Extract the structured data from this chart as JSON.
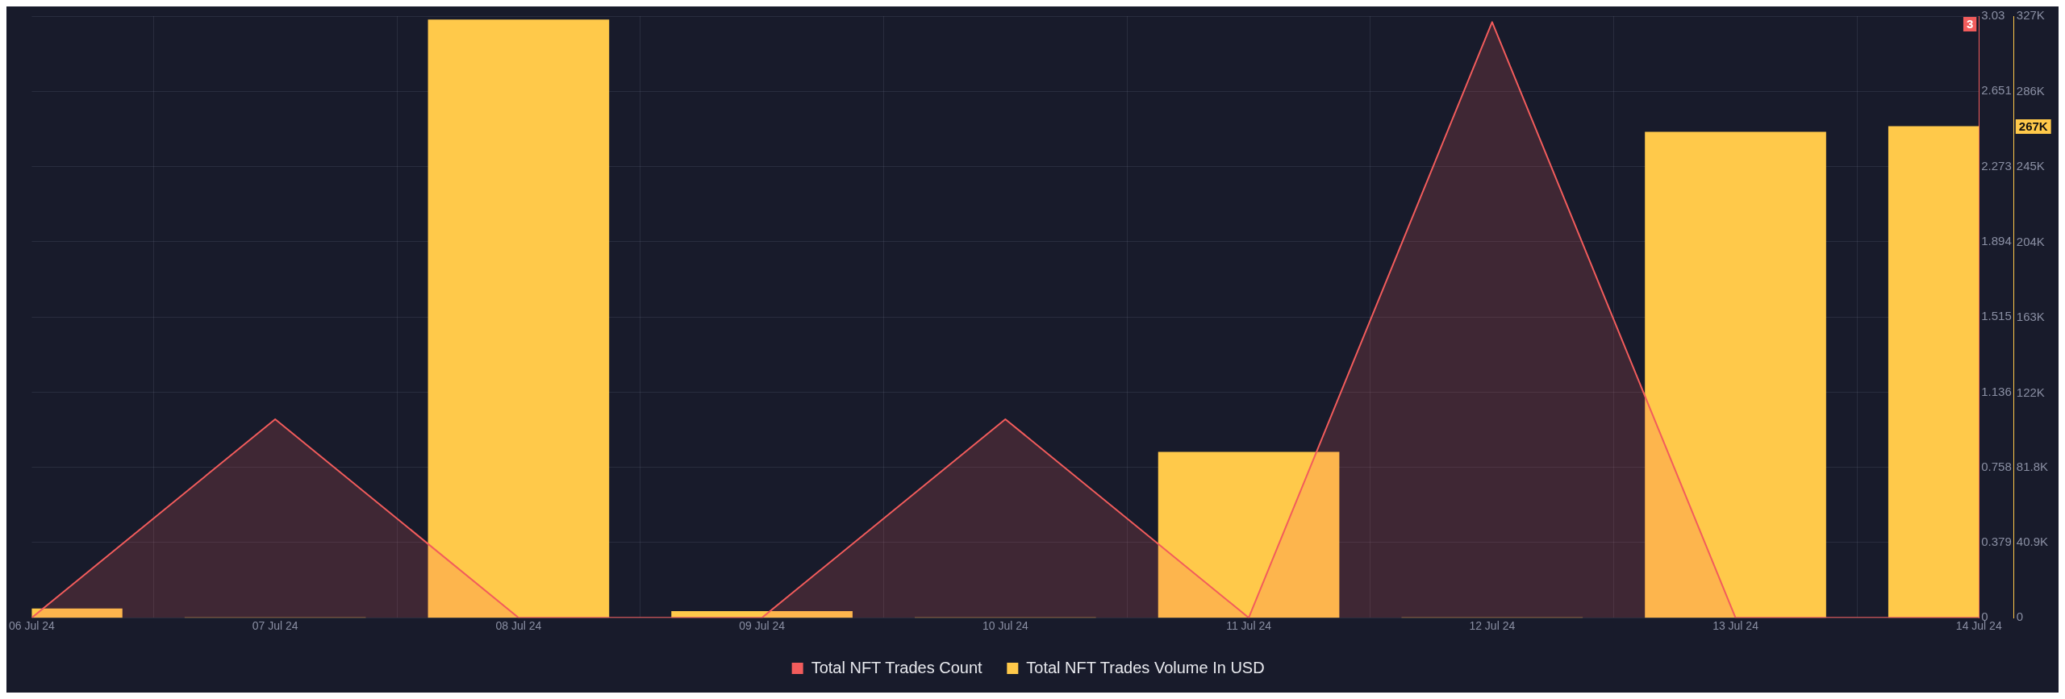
{
  "chart_data": {
    "type": "bar",
    "x": [
      "--07-06",
      "--07-07",
      "--07-08",
      "--07-09",
      "--07-10",
      "--07-11",
      "--07-12",
      "--07-13",
      "--07-14"
    ],
    "xlim": [
      "--07-06",
      "--07-14"
    ],
    "xticks": [
      {
        "value": "--07-06",
        "label": "06 Jul 24"
      },
      {
        "value": "--07-07",
        "label": "07 Jul 24"
      },
      {
        "value": "--07-08",
        "label": "08 Jul 24"
      },
      {
        "value": "--07-09",
        "label": "09 Jul 24"
      },
      {
        "value": "--07-10",
        "label": "10 Jul 24"
      },
      {
        "value": "--07-11",
        "label": "11 Jul 24"
      },
      {
        "value": "--07-12",
        "label": "12 Jul 24"
      },
      {
        "value": "--07-13",
        "label": "13 Jul 24"
      },
      {
        "value": "--07-14",
        "label": "14 Jul 24"
      }
    ],
    "series": [
      {
        "name": "Total NFT Trades Count",
        "type": "area",
        "color": "#f25c5c",
        "values": [
          0,
          1,
          0,
          0,
          1,
          0,
          3,
          0,
          0
        ]
      },
      {
        "name": "Total NFT Trades Volume In USD",
        "axis": "y2",
        "color": "#ffc94a",
        "values": [
          4900,
          0,
          325000,
          3500,
          0,
          90000,
          0,
          264000,
          267000
        ]
      }
    ],
    "ylim": [
      0,
      3.03
    ],
    "yticks": [
      0,
      0.379,
      0.758,
      1.136,
      1.515,
      1.894,
      2.273,
      2.651,
      3.03
    ],
    "y2lim": [
      0,
      327000
    ],
    "y2ticks": [
      0,
      {
        "value": 40900,
        "label": "40.9K"
      },
      {
        "value": 81800,
        "label": "81.8K"
      },
      {
        "value": 122000,
        "label": "122K"
      },
      {
        "value": 163000,
        "label": "163K"
      },
      {
        "value": 204000,
        "label": "204K"
      },
      {
        "value": 245000,
        "label": "245K"
      },
      {
        "value": 286000,
        "label": "286K"
      },
      {
        "value": 327000,
        "label": "327K"
      }
    ],
    "annotations": [
      "3",
      "267K"
    ],
    "grid": true,
    "legend": "bottom"
  }
}
